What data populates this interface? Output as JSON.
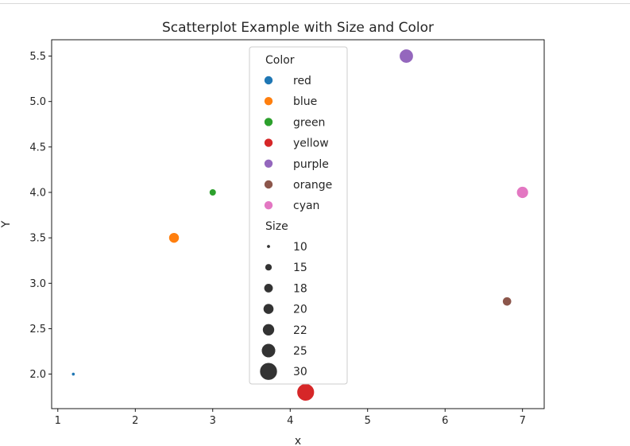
{
  "chart_data": {
    "type": "scatter",
    "title": "Scatterplot Example with Size and Color",
    "xlabel": "x",
    "ylabel": "Y",
    "xlim": [
      0.92,
      7.28
    ],
    "ylim": [
      1.62,
      5.68
    ],
    "xticks": [
      1,
      2,
      3,
      4,
      5,
      6,
      7
    ],
    "xtick_labels": [
      "1",
      "2",
      "3",
      "4",
      "5",
      "6",
      "7"
    ],
    "yticks": [
      2.0,
      2.5,
      3.0,
      3.5,
      4.0,
      4.5,
      5.0,
      5.5
    ],
    "ytick_labels": [
      "2.0",
      "2.5",
      "3.0",
      "3.5",
      "4.0",
      "4.5",
      "5.0",
      "5.5"
    ],
    "grid": false,
    "points": [
      {
        "x": 1.2,
        "y": 2.0,
        "color": "red",
        "size": 10
      },
      {
        "x": 2.5,
        "y": 3.5,
        "color": "blue",
        "size": 20
      },
      {
        "x": 3.0,
        "y": 4.0,
        "color": "green",
        "size": 15
      },
      {
        "x": 4.2,
        "y": 1.8,
        "color": "yellow",
        "size": 30
      },
      {
        "x": 5.5,
        "y": 5.5,
        "color": "purple",
        "size": 25
      },
      {
        "x": 6.8,
        "y": 2.8,
        "color": "orange",
        "size": 18
      },
      {
        "x": 7.0,
        "y": 4.0,
        "color": "cyan",
        "size": 22
      }
    ],
    "legend": {
      "placement": "upper center",
      "color_title": "Color",
      "color_entries": [
        {
          "label": "red",
          "hex": "#1f77b4"
        },
        {
          "label": "blue",
          "hex": "#ff7f0e"
        },
        {
          "label": "green",
          "hex": "#2ca02c"
        },
        {
          "label": "yellow",
          "hex": "#d62728"
        },
        {
          "label": "purple",
          "hex": "#9467bd"
        },
        {
          "label": "orange",
          "hex": "#8c564b"
        },
        {
          "label": "cyan",
          "hex": "#e377c2"
        }
      ],
      "size_title": "Size",
      "size_entries": [
        {
          "label": "10",
          "value": 10
        },
        {
          "label": "15",
          "value": 15
        },
        {
          "label": "18",
          "value": 18
        },
        {
          "label": "20",
          "value": 20
        },
        {
          "label": "22",
          "value": 22
        },
        {
          "label": "25",
          "value": 25
        },
        {
          "label": "30",
          "value": 30
        }
      ],
      "size_marker_color": "#333333"
    }
  }
}
